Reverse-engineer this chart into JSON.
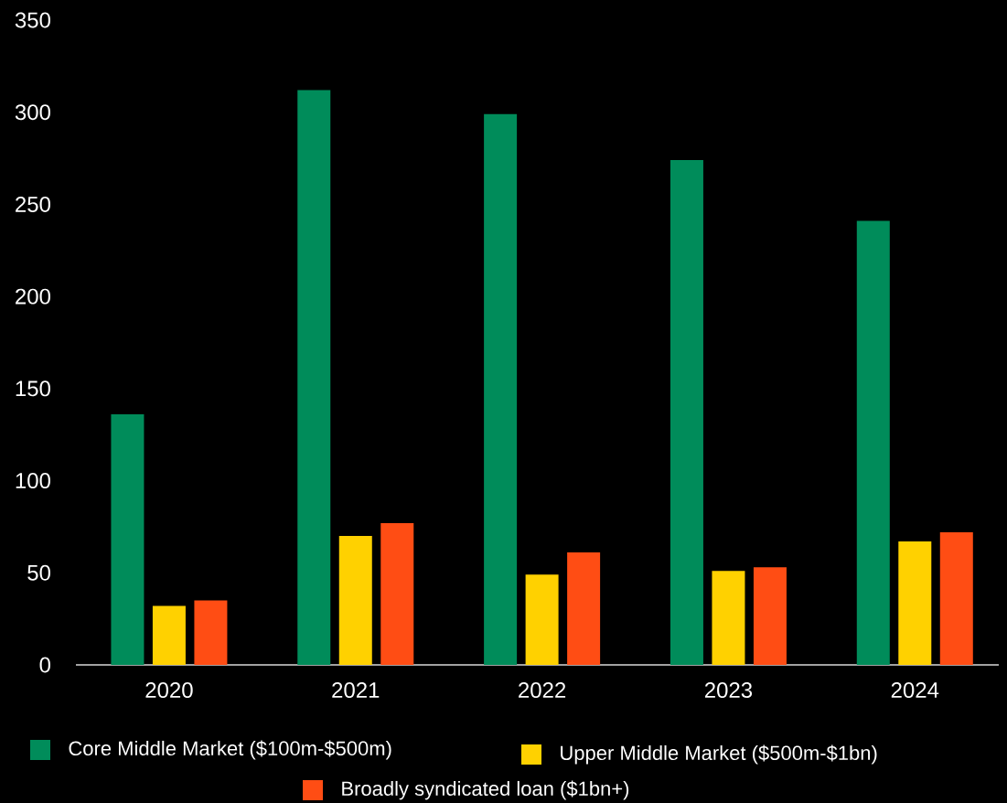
{
  "chart_data": {
    "type": "bar",
    "categories": [
      "2020",
      "2021",
      "2022",
      "2023",
      "2024"
    ],
    "series": [
      {
        "name": "Core Middle Market ($100m-$500m)",
        "color": "#008c5a",
        "values": [
          136,
          312,
          299,
          274,
          241
        ]
      },
      {
        "name": "Upper Middle Market ($500m-$1bn)",
        "color": "#ffd100",
        "values": [
          32,
          70,
          49,
          51,
          67
        ]
      },
      {
        "name": "Broadly syndicated loan ($1bn+)",
        "color": "#ff4d14",
        "values": [
          35,
          77,
          61,
          53,
          72
        ]
      }
    ],
    "ylim": [
      0,
      350
    ],
    "yticks": [
      0,
      50,
      100,
      150,
      200,
      250,
      300,
      350
    ],
    "grid": false,
    "legend": "bottom"
  }
}
